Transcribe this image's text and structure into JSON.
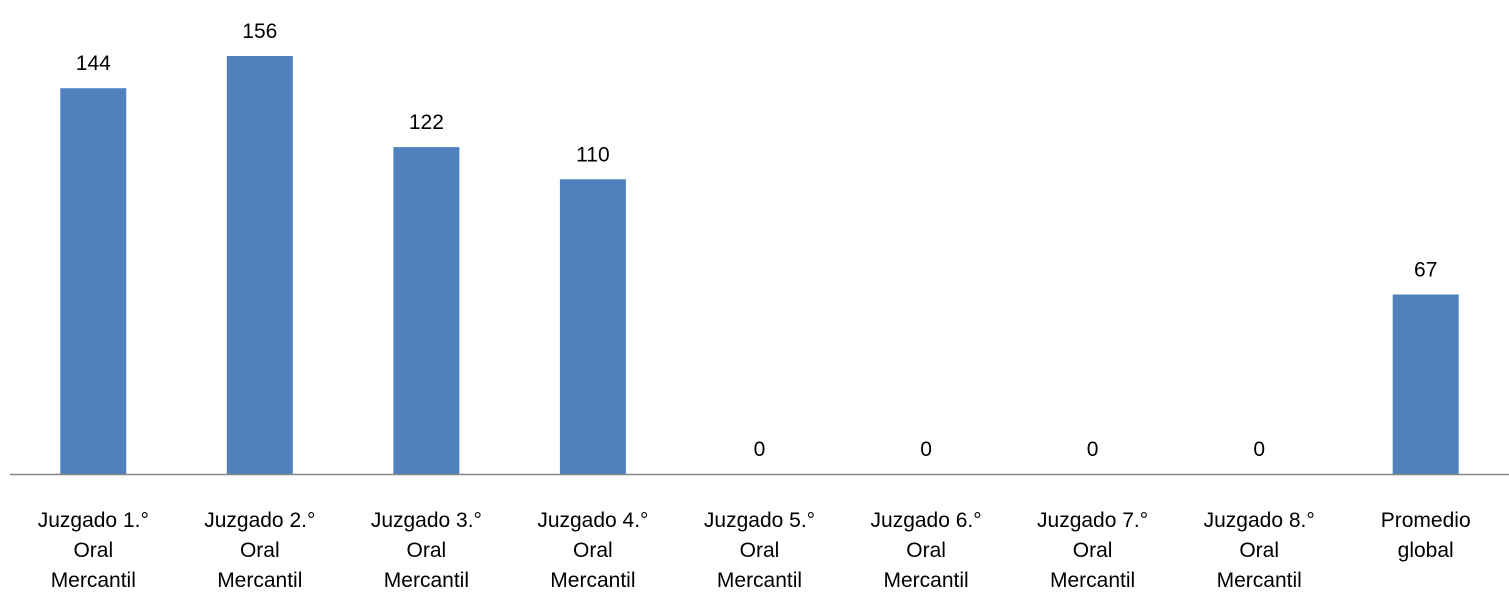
{
  "chart_data": {
    "type": "bar",
    "categories": [
      [
        "Juzgado 1.°",
        "Oral",
        "Mercantil"
      ],
      [
        "Juzgado 2.°",
        "Oral",
        "Mercantil"
      ],
      [
        "Juzgado 3.°",
        "Oral",
        "Mercantil"
      ],
      [
        "Juzgado 4.°",
        "Oral",
        "Mercantil"
      ],
      [
        "Juzgado 5.°",
        "Oral",
        "Mercantil"
      ],
      [
        "Juzgado 6.°",
        "Oral",
        "Mercantil"
      ],
      [
        "Juzgado 7.°",
        "Oral",
        "Mercantil"
      ],
      [
        "Juzgado 8.°",
        "Oral",
        "Mercantil"
      ],
      [
        "Promedio",
        "global"
      ]
    ],
    "values": [
      144,
      156,
      122,
      110,
      0,
      0,
      0,
      0,
      67
    ],
    "value_labels": [
      "144",
      "156",
      "122",
      "110",
      "0",
      "0",
      "0",
      "0",
      "67"
    ],
    "ylim": [
      0,
      156
    ],
    "grid": false,
    "legend": "none",
    "colors": {
      "bar": "#4F81BD",
      "axis": "#868686",
      "text": "#000000"
    }
  }
}
